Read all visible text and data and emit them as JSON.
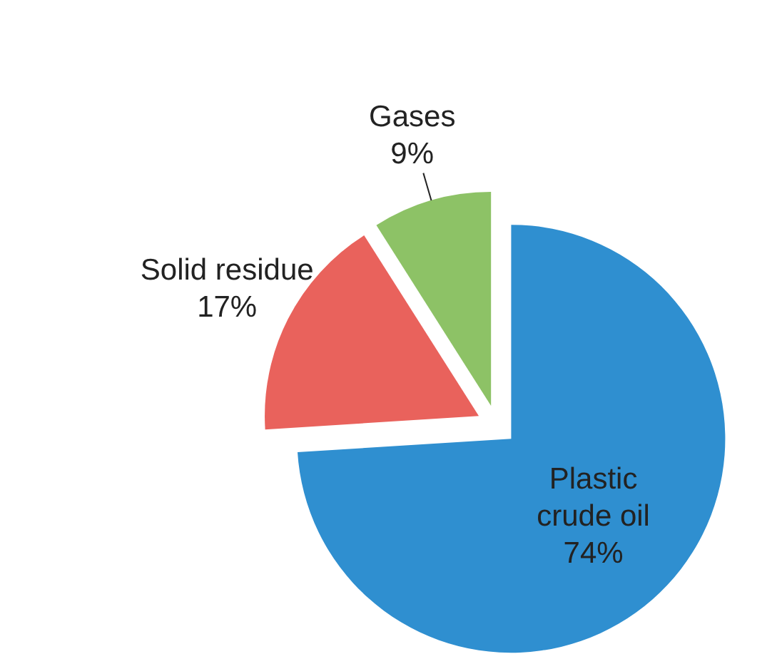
{
  "chart_data": {
    "type": "pie",
    "categories": [
      "Plastic crude oil",
      "Solid residue",
      "Gases"
    ],
    "values": [
      74,
      17,
      9
    ],
    "colors": [
      "#2f8fd0",
      "#e9625c",
      "#8dc266"
    ],
    "value_labels": [
      "74%",
      "17%",
      "9%"
    ],
    "legend": false
  }
}
